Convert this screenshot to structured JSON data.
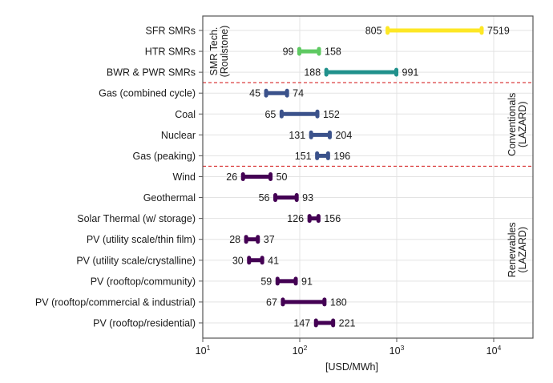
{
  "chart_data": {
    "type": "range-bar",
    "title": "",
    "xlabel": "[USD/MWh]",
    "ylabel": "",
    "xscale": "log",
    "xlim": [
      10,
      25000
    ],
    "grid": true,
    "xticks": [
      {
        "value": 10,
        "base": "10",
        "exp": "1"
      },
      {
        "value": 100,
        "base": "10",
        "exp": "2"
      },
      {
        "value": 1000,
        "base": "10",
        "exp": "3"
      },
      {
        "value": 10000,
        "base": "10",
        "exp": "4"
      }
    ],
    "categories": [
      "SFR SMRs",
      "HTR SMRs",
      "BWR & PWR SMRs",
      "Gas (combined cycle)",
      "Coal",
      "Nuclear",
      "Gas (peaking)",
      "Wind",
      "Geothermal",
      "Solar Thermal (w/ storage)",
      "PV (utility scale/thin film)",
      "PV (utility scale/crystalline)",
      "PV (rooftop/community)",
      "PV (rooftop/commercial & industrial)",
      "PV (rooftop/residential)"
    ],
    "ranges": [
      {
        "low": 805,
        "high": 7519,
        "low_label": "805",
        "high_label": "7519",
        "color": "#fde725"
      },
      {
        "low": 99,
        "high": 158,
        "low_label": "99",
        "high_label": "158",
        "color": "#5ec962"
      },
      {
        "low": 188,
        "high": 991,
        "low_label": "188",
        "high_label": "991",
        "color": "#21918c"
      },
      {
        "low": 45,
        "high": 74,
        "low_label": "45",
        "high_label": "74",
        "color": "#3b528b"
      },
      {
        "low": 65,
        "high": 152,
        "low_label": "65",
        "high_label": "152",
        "color": "#3b528b"
      },
      {
        "low": 131,
        "high": 204,
        "low_label": "131",
        "high_label": "204",
        "color": "#3b528b"
      },
      {
        "low": 151,
        "high": 196,
        "low_label": "151",
        "high_label": "196",
        "color": "#3b528b"
      },
      {
        "low": 26,
        "high": 50,
        "low_label": "26",
        "high_label": "50",
        "color": "#440154"
      },
      {
        "low": 56,
        "high": 93,
        "low_label": "56",
        "high_label": "93",
        "color": "#440154"
      },
      {
        "low": 126,
        "high": 156,
        "low_label": "126",
        "high_label": "156",
        "color": "#440154"
      },
      {
        "low": 28,
        "high": 37,
        "low_label": "28",
        "high_label": "37",
        "color": "#440154"
      },
      {
        "low": 30,
        "high": 41,
        "low_label": "30",
        "high_label": "41",
        "color": "#440154"
      },
      {
        "low": 59,
        "high": 91,
        "low_label": "59",
        "high_label": "91",
        "color": "#440154"
      },
      {
        "low": 67,
        "high": 180,
        "low_label": "67",
        "high_label": "180",
        "color": "#440154"
      },
      {
        "low": 147,
        "high": 221,
        "low_label": "147",
        "high_label": "221",
        "color": "#440154"
      }
    ],
    "groups": [
      {
        "name": "SMR Tech. (Roulstone)",
        "line1": "SMR Tech.",
        "line2": "(Roulstone)",
        "first": 0,
        "last": 2,
        "label_side": "left"
      },
      {
        "name": "Conventionals (LAZARD)",
        "line1": "Conventionals",
        "line2": "(LAZARD)",
        "first": 3,
        "last": 6,
        "label_side": "right"
      },
      {
        "name": "Renewables (LAZARD)",
        "line1": "Renewables",
        "line2": "(LAZARD)",
        "first": 7,
        "last": 14,
        "label_side": "right"
      }
    ],
    "separator_color": "#d62728",
    "legend": "none"
  }
}
